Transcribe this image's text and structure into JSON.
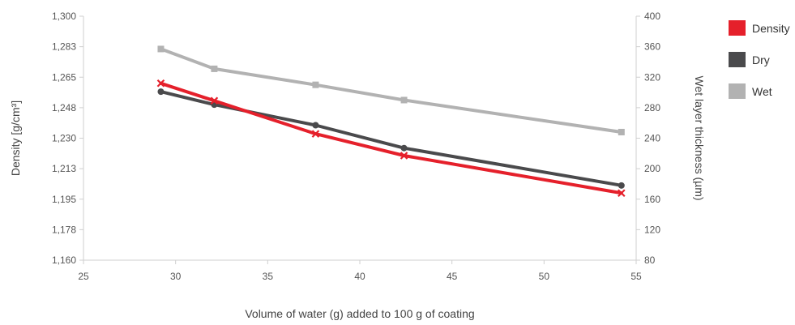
{
  "chart_data": {
    "type": "line",
    "title": "",
    "xlabel": "Volume of water (g) added to 100 g of coating",
    "ylabel": "Density [g/cm³]",
    "y2label": "Wet layer thickness (µm)",
    "xlim": [
      25,
      55
    ],
    "ylim": [
      1.16,
      1.3
    ],
    "y2lim": [
      80,
      400
    ],
    "xticks": [
      "25",
      "30",
      "35",
      "40",
      "45",
      "50",
      "55"
    ],
    "yticks": [
      "1,160",
      "1,178",
      "1,195",
      "1,213",
      "1,230",
      "1,248",
      "1,265",
      "1,283",
      "1,300"
    ],
    "y2ticks": [
      "80",
      "120",
      "160",
      "200",
      "240",
      "280",
      "320",
      "360",
      "400"
    ],
    "grid": false,
    "legend_position": "right",
    "series": [
      {
        "name": "Density",
        "axis": "left",
        "color": "#e5202b",
        "marker": "x",
        "x": [
          29.2,
          32.1,
          37.6,
          42.4,
          54.2
        ],
        "y": [
          1.2615,
          1.2515,
          1.2325,
          1.22,
          1.1985
        ]
      },
      {
        "name": "Dry",
        "axis": "right",
        "color": "#4a4a4c",
        "marker": "circle",
        "x": [
          29.2,
          32.1,
          37.6,
          42.4,
          54.2
        ],
        "y": [
          301,
          284,
          257,
          227,
          178
        ]
      },
      {
        "name": "Wet",
        "axis": "right",
        "color": "#b2b2b2",
        "marker": "square",
        "x": [
          29.2,
          32.1,
          37.6,
          42.4,
          54.2
        ],
        "y": [
          357,
          331,
          310,
          290,
          248
        ]
      }
    ]
  }
}
